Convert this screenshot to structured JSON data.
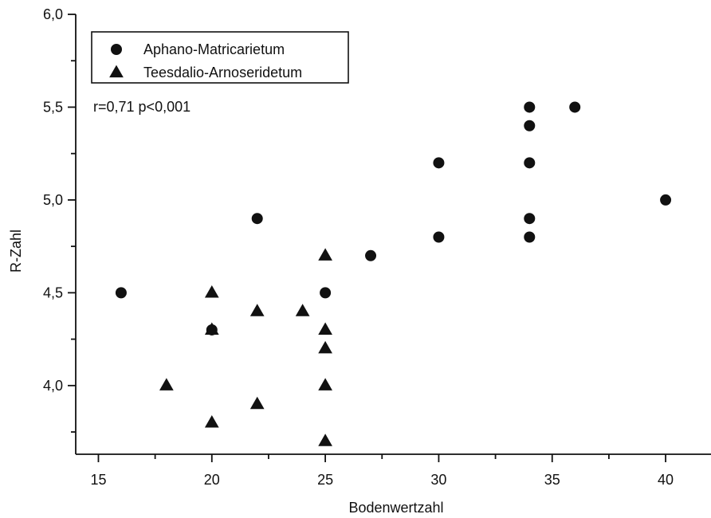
{
  "chart_data": {
    "type": "scatter",
    "title": "",
    "xlabel": "Bodenwertzahl",
    "ylabel": "R-Zahl",
    "xlim": [
      14,
      42
    ],
    "ylim": [
      3.63,
      6.0
    ],
    "xticks": [
      15,
      20,
      25,
      30,
      35,
      40
    ],
    "xtick_labels": [
      "15",
      "20",
      "25",
      "30",
      "35",
      "40"
    ],
    "yticks": [
      4.0,
      4.5,
      5.0,
      5.5,
      6.0
    ],
    "ytick_labels": [
      "4,0",
      "4,5",
      "5,0",
      "5,5",
      "6,0"
    ],
    "y_minor_step": 0.25,
    "x_minor_step": 2.5,
    "grid": false,
    "legend": {
      "placement": "top-left",
      "entries": [
        {
          "name": "Aphano-Matricarietum",
          "marker": "circle"
        },
        {
          "name": "Teesdalio-Arnoseridetum",
          "marker": "triangle"
        }
      ]
    },
    "annotation": "r=0,71  p<0,001",
    "series": [
      {
        "name": "Aphano-Matricarietum",
        "marker": "circle",
        "color": "#111111",
        "points": [
          [
            16,
            4.5
          ],
          [
            20,
            4.3
          ],
          [
            22,
            4.9
          ],
          [
            25,
            4.5
          ],
          [
            27,
            4.7
          ],
          [
            30,
            5.2
          ],
          [
            30,
            4.8
          ],
          [
            34,
            5.5
          ],
          [
            34,
            5.4
          ],
          [
            34,
            5.2
          ],
          [
            34,
            4.9
          ],
          [
            34,
            4.8
          ],
          [
            36,
            5.5
          ],
          [
            40,
            5.0
          ]
        ]
      },
      {
        "name": "Teesdalio-Arnoseridetum",
        "marker": "triangle",
        "color": "#111111",
        "points": [
          [
            18,
            4.0
          ],
          [
            20,
            4.5
          ],
          [
            20,
            4.3
          ],
          [
            20,
            3.8
          ],
          [
            22,
            4.4
          ],
          [
            22,
            3.9
          ],
          [
            24,
            4.4
          ],
          [
            25,
            4.7
          ],
          [
            25,
            4.3
          ],
          [
            25,
            4.2
          ],
          [
            25,
            4.0
          ],
          [
            25,
            3.7
          ]
        ]
      }
    ]
  }
}
